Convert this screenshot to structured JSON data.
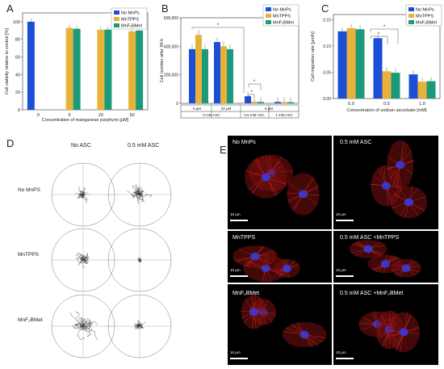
{
  "panel_letters": {
    "A": "A",
    "B": "B",
    "C": "C",
    "D": "D",
    "E": "E"
  },
  "chart_data": [
    {
      "type": "bar",
      "panel": "A",
      "categories": [
        "0",
        "5",
        "20",
        "50"
      ],
      "series": [
        {
          "name": "No MnPs",
          "color": "#1c4fd8",
          "values": [
            100,
            null,
            null,
            null
          ]
        },
        {
          "name": "MnTPPS",
          "color": "#e8b23a",
          "values": [
            null,
            93,
            91,
            89
          ]
        },
        {
          "name": "MnF2BMet",
          "color": "#1a9a7a",
          "values": [
            null,
            92,
            91,
            90
          ]
        }
      ],
      "xlabel": "Concentration of manganese porphyrin [μM]",
      "ylabel": "Cell viability relative to control [%]",
      "ylim": [
        0,
        110
      ],
      "yticks": [
        "0",
        "20",
        "40",
        "60",
        "80",
        "100"
      ],
      "legend_labels": [
        "No MnPs",
        "MnTPPS",
        "MnF₂BMet"
      ],
      "legend_position": "top-right"
    },
    {
      "type": "bar",
      "panel": "B",
      "categories": [
        "5 μM / 0 mM ASC",
        "20 μM / 0 mM ASC",
        "0.5 mM ASC",
        "1 mM ASC"
      ],
      "series": [
        {
          "name": "No MnPs",
          "color": "#1c4fd8",
          "values": [
            380000,
            430000,
            50000,
            10000
          ]
        },
        {
          "name": "MnTPPS",
          "color": "#e8b23a",
          "values": [
            480000,
            400000,
            12000,
            9000
          ]
        },
        {
          "name": "MnF2BMet",
          "color": "#1a9a7a",
          "values": [
            380000,
            380000,
            10000,
            8000
          ]
        }
      ],
      "ylabel": "Cell number after 96 h",
      "ylim": [
        0,
        600000
      ],
      "yticks": [
        "0",
        "200,000",
        "400,000",
        "600,000"
      ],
      "xtable": {
        "row1": [
          "5 μM",
          "20 μM",
          "5 μM"
        ],
        "row2": [
          "0 mM ASC",
          "0.5 mM ASC",
          "1 mM ASC"
        ]
      },
      "annotation": "*",
      "legend_labels": [
        "No MnPs",
        "MnTPPS",
        "MnF₂BMet"
      ],
      "legend_position": "top-right"
    },
    {
      "type": "bar",
      "panel": "C",
      "categories": [
        "0.0",
        "0.5",
        "1.0"
      ],
      "series": [
        {
          "name": "No MnPs",
          "color": "#1c4fd8",
          "values": [
            0.128,
            0.115,
            0.046
          ]
        },
        {
          "name": "MnTPPS",
          "color": "#e8b23a",
          "values": [
            0.134,
            0.052,
            0.032
          ]
        },
        {
          "name": "MnF2BMet",
          "color": "#1a9a7a",
          "values": [
            0.132,
            0.049,
            0.033
          ]
        }
      ],
      "xlabel": "Concentration of sodium ascorbate [mM]",
      "ylabel": "Cell migration rate [μm/h]",
      "ylim": [
        0,
        0.16
      ],
      "yticks": [
        "0.00",
        "0.05",
        "0.10",
        "0.15"
      ],
      "annotation": "*",
      "legend_labels": [
        "No MnPs",
        "MnTPPS",
        "MnF₂BMet"
      ],
      "legend_position": "top-right"
    }
  ],
  "panel_d": {
    "col_titles": [
      "No ASC",
      "0.5 mM ASC"
    ],
    "row_labels": [
      "No MnPS",
      "MnTPPS",
      "MnF₂BMet"
    ]
  },
  "panel_e": {
    "cells": [
      "No MnPs",
      "0.5 mM ASC",
      "MnTPPS",
      "0.5 mM ASC +MnTPPS",
      "MnF₂BMet",
      "0.5 mM ASC +MnF₂BMet"
    ],
    "scale": "10 μm"
  }
}
